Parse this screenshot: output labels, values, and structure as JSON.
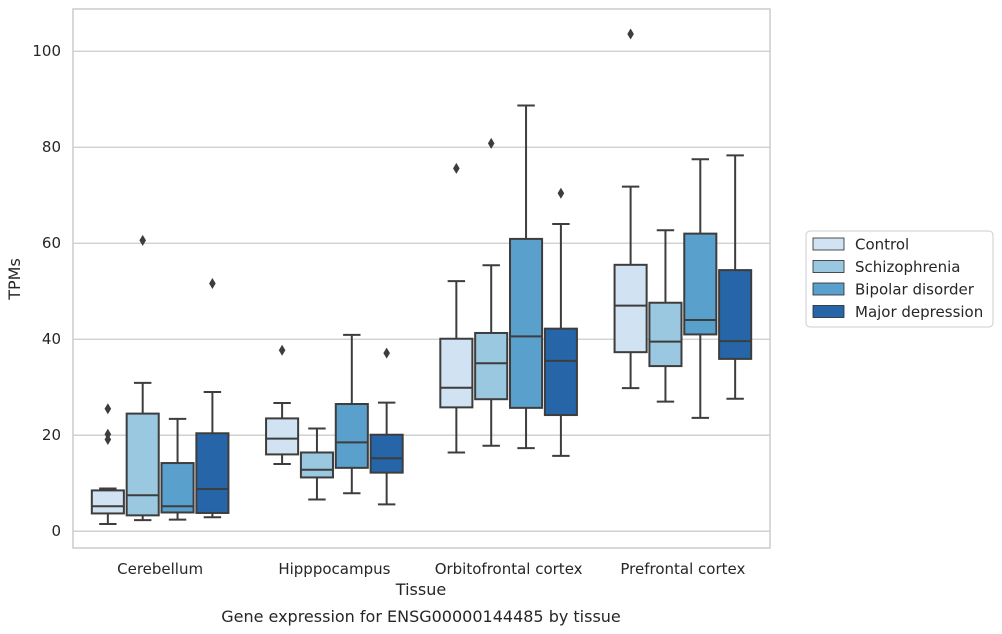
{
  "chart_data": {
    "type": "boxplot",
    "caption": "Gene expression for ENSG00000144485 by tissue",
    "xlabel": "Tissue",
    "ylabel": "TPMs",
    "ylim": [
      -3.5,
      108.8
    ],
    "yticks": [
      0,
      20,
      40,
      60,
      80,
      100
    ],
    "grid": true,
    "legend_position": "right",
    "categories": [
      "Cerebellum",
      "Hipppocampus",
      "Orbitofrontal cortex",
      "Prefrontal cortex"
    ],
    "series": [
      {
        "name": "Control",
        "color": "#d1e3f3",
        "boxes": [
          {
            "whislo": 1.5,
            "q1": 3.7,
            "med": 5.2,
            "q3": 8.5,
            "whishi": 8.9,
            "fliers": [
              25.5,
              20.2,
              19.1
            ]
          },
          {
            "whislo": 14.0,
            "q1": 16.0,
            "med": 19.3,
            "q3": 23.5,
            "whishi": 26.7,
            "fliers": [
              37.7
            ]
          },
          {
            "whislo": 16.4,
            "q1": 25.8,
            "med": 29.9,
            "q3": 40.1,
            "whishi": 52.1,
            "fliers": [
              75.6
            ]
          },
          {
            "whislo": 29.8,
            "q1": 37.3,
            "med": 47.0,
            "q3": 55.5,
            "whishi": 71.8,
            "fliers": [
              103.6
            ]
          }
        ]
      },
      {
        "name": "Schizophrenia",
        "color": "#9ac8e1",
        "boxes": [
          {
            "whislo": 2.3,
            "q1": 3.3,
            "med": 7.5,
            "q3": 24.5,
            "whishi": 30.9,
            "fliers": [
              60.6
            ]
          },
          {
            "whislo": 6.6,
            "q1": 11.2,
            "med": 12.8,
            "q3": 16.4,
            "whishi": 21.4,
            "fliers": []
          },
          {
            "whislo": 17.8,
            "q1": 27.5,
            "med": 35.0,
            "q3": 41.3,
            "whishi": 55.4,
            "fliers": [
              80.8
            ]
          },
          {
            "whislo": 27.0,
            "q1": 34.4,
            "med": 39.5,
            "q3": 47.6,
            "whishi": 62.7,
            "fliers": []
          }
        ]
      },
      {
        "name": "Bipolar disorder",
        "color": "#5aa0cd",
        "boxes": [
          {
            "whislo": 2.4,
            "q1": 3.9,
            "med": 5.2,
            "q3": 14.2,
            "whishi": 23.4,
            "fliers": []
          },
          {
            "whislo": 7.9,
            "q1": 13.2,
            "med": 18.5,
            "q3": 26.5,
            "whishi": 40.9,
            "fliers": []
          },
          {
            "whislo": 17.3,
            "q1": 25.7,
            "med": 40.6,
            "q3": 60.9,
            "whishi": 88.7,
            "fliers": []
          },
          {
            "whislo": 23.6,
            "q1": 41.0,
            "med": 44.0,
            "q3": 62.0,
            "whishi": 77.5,
            "fliers": []
          }
        ]
      },
      {
        "name": "Major depression",
        "color": "#2565a8",
        "boxes": [
          {
            "whislo": 2.9,
            "q1": 3.8,
            "med": 8.8,
            "q3": 20.4,
            "whishi": 29.0,
            "fliers": [
              51.6
            ]
          },
          {
            "whislo": 5.6,
            "q1": 12.2,
            "med": 15.2,
            "q3": 20.1,
            "whishi": 26.8,
            "fliers": [
              37.1
            ]
          },
          {
            "whislo": 15.7,
            "q1": 24.2,
            "med": 35.5,
            "q3": 42.2,
            "whishi": 64.0,
            "fliers": [
              70.4
            ]
          },
          {
            "whislo": 27.6,
            "q1": 35.9,
            "med": 39.6,
            "q3": 54.4,
            "whishi": 78.3,
            "fliers": []
          }
        ]
      }
    ]
  }
}
